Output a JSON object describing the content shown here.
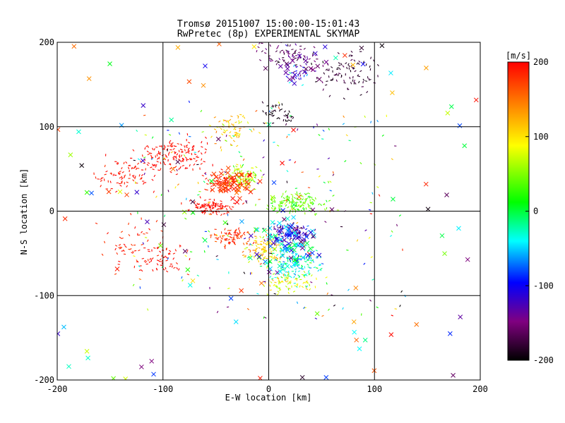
{
  "chart_data": {
    "type": "scatter",
    "title": "Tromsø 20151007 15:00:00-15:01:43",
    "subtitle": "RwPretec (8p) EXPERIMENTAL SKYMAP",
    "xlabel": "E-W location [km]",
    "ylabel": "N-S location [km]",
    "xlim": [
      -200,
      200
    ],
    "ylim": [
      -200,
      200
    ],
    "xticks": [
      -200,
      -100,
      0,
      100,
      200
    ],
    "yticks": [
      -200,
      -100,
      0,
      100,
      200
    ],
    "xtick_labels": [
      "-200",
      "-100",
      "0",
      "100",
      "200"
    ],
    "ytick_labels": [
      "-200",
      "-100",
      "0",
      "100",
      "200"
    ],
    "grid": true,
    "colorbar": {
      "label": "[m/s]",
      "range": [
        -200,
        200
      ],
      "ticks": [
        200,
        100,
        0,
        -100,
        -200
      ],
      "tick_labels": [
        "200",
        "100",
        "0",
        "-100",
        "-200"
      ],
      "stops": [
        "#ff0000",
        "#ff8000",
        "#ffff00",
        "#00ff00",
        "#00ffff",
        "#0000ff",
        "#800080",
        "#000000"
      ]
    },
    "marker_types": [
      "dot",
      "x"
    ],
    "clusters": [
      {
        "cx": -90,
        "cy": 65,
        "sx": 30,
        "sy": 18,
        "n": 160,
        "v": 195,
        "vs": 8,
        "marker": "dot"
      },
      {
        "cx": -140,
        "cy": 40,
        "sx": 22,
        "sy": 18,
        "n": 70,
        "v": 190,
        "vs": 10,
        "marker": "dot"
      },
      {
        "cx": -130,
        "cy": -40,
        "sx": 25,
        "sy": 25,
        "n": 50,
        "v": 185,
        "vs": 15,
        "marker": "dot"
      },
      {
        "cx": -100,
        "cy": -55,
        "sx": 20,
        "sy": 15,
        "n": 60,
        "v": 195,
        "vs": 8,
        "marker": "dot"
      },
      {
        "cx": -55,
        "cy": 5,
        "sx": 18,
        "sy": 8,
        "n": 110,
        "v": 195,
        "vs": 8,
        "marker": "dot"
      },
      {
        "cx": -40,
        "cy": 33,
        "sx": 15,
        "sy": 7,
        "n": 110,
        "v": 185,
        "vs": 12,
        "marker": "dot"
      },
      {
        "cx": -25,
        "cy": 40,
        "sx": 12,
        "sy": 12,
        "n": 110,
        "v": 70,
        "vs": 50,
        "marker": "dot"
      },
      {
        "cx": 25,
        "cy": 10,
        "sx": 25,
        "sy": 10,
        "n": 150,
        "v": 40,
        "vs": 25,
        "marker": "dot"
      },
      {
        "cx": -35,
        "cy": -30,
        "sx": 18,
        "sy": 10,
        "n": 80,
        "v": 180,
        "vs": 20,
        "marker": "dot"
      },
      {
        "cx": -5,
        "cy": -45,
        "sx": 14,
        "sy": 14,
        "n": 110,
        "v": 110,
        "vs": 50,
        "marker": "dot"
      },
      {
        "cx": 20,
        "cy": -25,
        "sx": 16,
        "sy": 10,
        "n": 120,
        "v": -120,
        "vs": 55,
        "marker": "dot"
      },
      {
        "cx": 25,
        "cy": -60,
        "sx": 22,
        "sy": 18,
        "n": 150,
        "v": -30,
        "vs": 40,
        "marker": "dot"
      },
      {
        "cx": 20,
        "cy": -85,
        "sx": 20,
        "sy": 10,
        "n": 70,
        "v": 90,
        "vs": 40,
        "marker": "dot"
      },
      {
        "cx": -35,
        "cy": 95,
        "sx": 18,
        "sy": 18,
        "n": 70,
        "v": 110,
        "vs": 35,
        "marker": "dot"
      },
      {
        "cx": 10,
        "cy": 115,
        "sx": 15,
        "sy": 10,
        "n": 40,
        "v": -190,
        "vs": 12,
        "marker": "dot"
      },
      {
        "cx": 20,
        "cy": 185,
        "sx": 25,
        "sy": 12,
        "n": 80,
        "v": -160,
        "vs": 30,
        "marker": "dot"
      },
      {
        "cx": 75,
        "cy": 165,
        "sx": 22,
        "sy": 20,
        "n": 90,
        "v": -180,
        "vs": 15,
        "marker": "dot"
      },
      {
        "cx": 30,
        "cy": 160,
        "sx": 15,
        "sy": 12,
        "n": 30,
        "v": -100,
        "vs": 50,
        "marker": "dot"
      },
      {
        "cx": 0,
        "cy": 0,
        "sx": 130,
        "sy": 130,
        "n": 220,
        "v": 0,
        "vs": 200,
        "marker": "dot",
        "uniform": true
      },
      {
        "cx": 0,
        "cy": 0,
        "sx": 200,
        "sy": 200,
        "n": 110,
        "v": 0,
        "vs": 200,
        "marker": "x",
        "uniform": true
      },
      {
        "cx": 15,
        "cy": -40,
        "sx": 25,
        "sy": 30,
        "n": 90,
        "v": -60,
        "vs": 80,
        "marker": "x"
      },
      {
        "cx": -30,
        "cy": 30,
        "sx": 20,
        "sy": 15,
        "n": 40,
        "v": 180,
        "vs": 20,
        "marker": "x"
      },
      {
        "cx": 30,
        "cy": 170,
        "sx": 20,
        "sy": 15,
        "n": 20,
        "v": -150,
        "vs": 30,
        "marker": "x"
      }
    ]
  }
}
